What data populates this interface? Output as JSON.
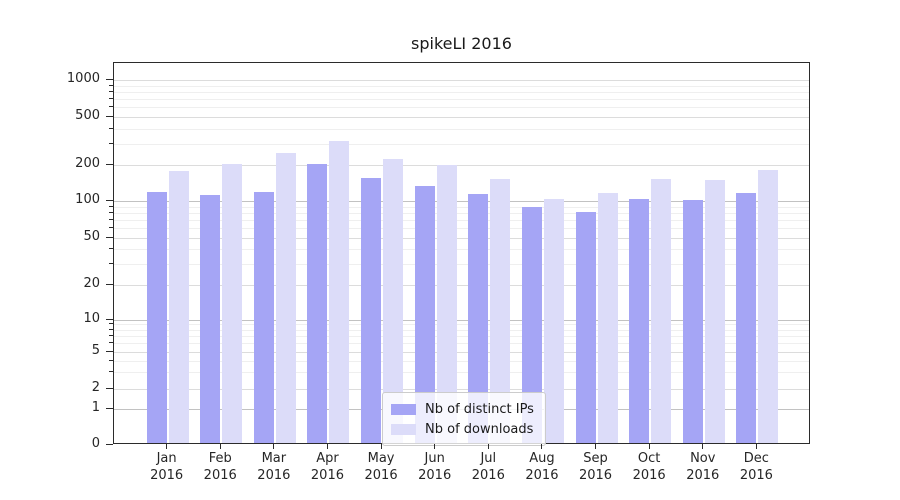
{
  "chart_data": {
    "type": "bar",
    "title": "spikeLI 2016",
    "categories": [
      "Jan 2016",
      "Feb 2016",
      "Mar 2016",
      "Apr 2016",
      "May 2016",
      "Jun 2016",
      "Jul 2016",
      "Aug 2016",
      "Sep 2016",
      "Oct 2016",
      "Nov 2016",
      "Dec 2016"
    ],
    "series": [
      {
        "name": "Nb of distinct IPs",
        "color": "#a5a5f5",
        "values": [
          114,
          108,
          116,
          197,
          150,
          128,
          111,
          87,
          78,
          101,
          99,
          112
        ]
      },
      {
        "name": "Nb of downloads",
        "color": "#dcdcf9",
        "values": [
          173,
          195,
          243,
          305,
          215,
          192,
          146,
          101,
          112,
          146,
          144,
          175
        ]
      }
    ],
    "yscale": "symlog",
    "yticks": [
      0,
      1,
      2,
      5,
      10,
      20,
      50,
      100,
      200,
      500,
      1000
    ],
    "ytick_labels": [
      "0",
      "1",
      "2",
      "5",
      "10",
      "20",
      "50",
      "100",
      "200",
      "500",
      "1000"
    ],
    "ylim": [
      0,
      1400
    ],
    "grid": true,
    "legend_position": "lower-center"
  }
}
